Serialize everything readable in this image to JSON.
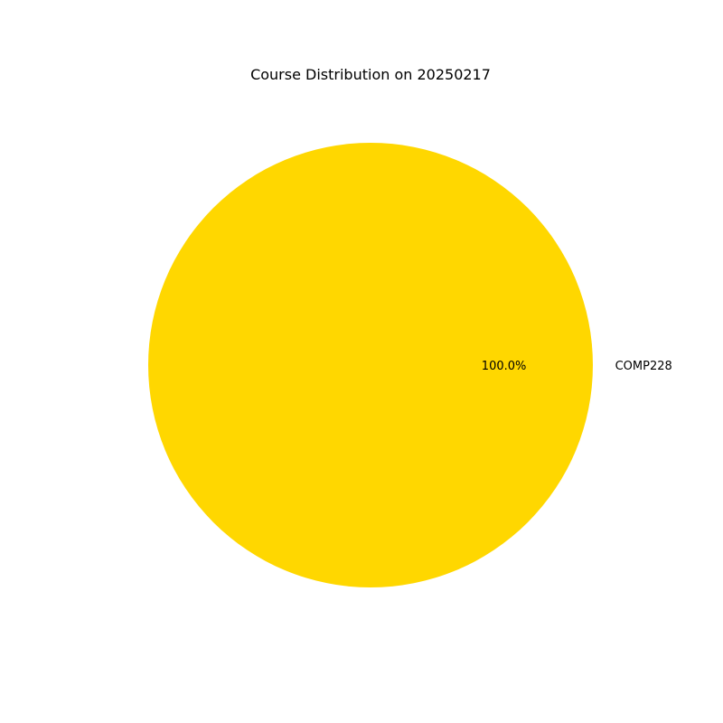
{
  "chart_data": {
    "type": "pie",
    "title": "Course Distribution on 20250217",
    "slices": [
      {
        "label": "COMP228",
        "value": 100.0,
        "percent_label": "100.0%",
        "color": "#FFD700"
      }
    ],
    "start_angle_deg": 180,
    "autopct": true,
    "legend": "none"
  }
}
